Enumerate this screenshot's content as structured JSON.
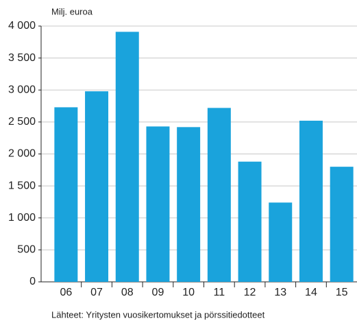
{
  "chart_data": {
    "type": "bar",
    "y_axis_label": "Milj. euroa",
    "source": "Lähteet: Yritysten vuosikertomukset ja pörssitiedotteet",
    "categories": [
      "06",
      "07",
      "08",
      "09",
      "10",
      "11",
      "12",
      "13",
      "14",
      "15"
    ],
    "values": [
      2730,
      2980,
      3910,
      2430,
      2420,
      2720,
      1880,
      1240,
      2520,
      1800
    ],
    "color": "#1aa3dc",
    "ylim": [
      0,
      4000
    ],
    "yticks": [
      0,
      500,
      {
        "value": 1000,
        "label": "1 000"
      },
      {
        "value": 1500,
        "label": "1 500"
      },
      {
        "value": 2000,
        "label": "2 000"
      },
      {
        "value": 2500,
        "label": "2 500"
      },
      {
        "value": 3000,
        "label": "3 000"
      },
      {
        "value": 3500,
        "label": "3 500"
      },
      {
        "value": 4000,
        "label": "4 000"
      }
    ],
    "grid": true
  }
}
